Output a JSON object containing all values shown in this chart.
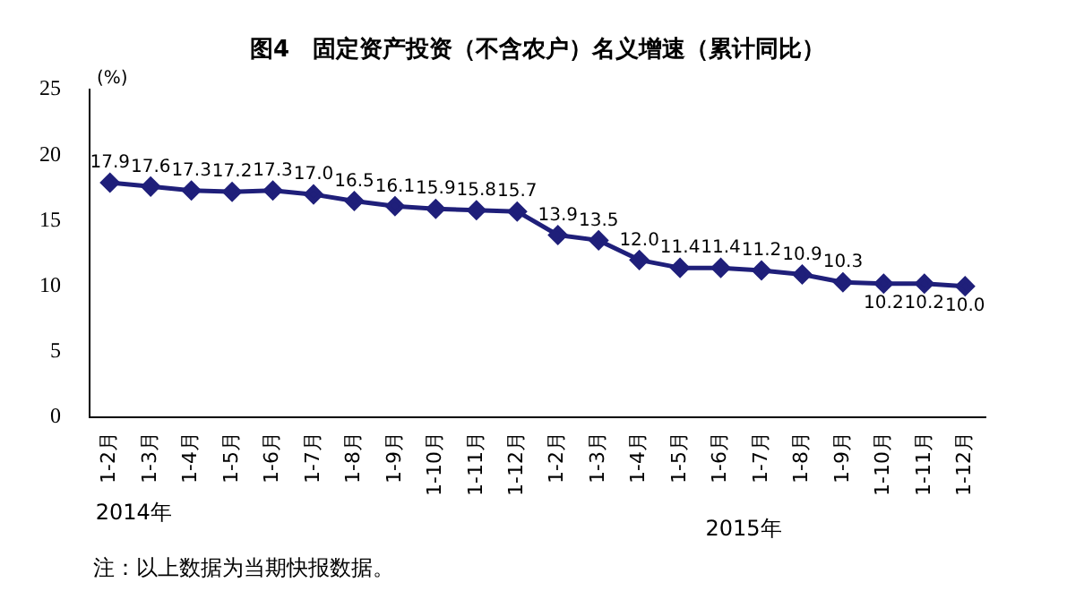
{
  "chart_data": {
    "type": "line",
    "title": "图4　固定资产投资（不含农户）名义增速（累计同比）",
    "ylabel": "(%)",
    "categories": [
      "1-2月",
      "1-3月",
      "1-4月",
      "1-5月",
      "1-6月",
      "1-7月",
      "1-8月",
      "1-9月",
      "1-10月",
      "1-11月",
      "1-12月",
      "1-2月",
      "1-3月",
      "1-4月",
      "1-5月",
      "1-6月",
      "1-7月",
      "1-8月",
      "1-9月",
      "1-10月",
      "1-11月",
      "1-12月"
    ],
    "series": [
      {
        "color": "#1f1f7a",
        "values": [
          17.9,
          17.6,
          17.3,
          17.2,
          17.3,
          17.0,
          16.5,
          16.1,
          15.9,
          15.8,
          15.7,
          13.9,
          13.5,
          12.0,
          11.4,
          11.4,
          11.2,
          10.9,
          10.3,
          10.2,
          10.2,
          10.0
        ],
        "value_labels": [
          "17.9",
          "17.6",
          "17.3",
          "17.2",
          "17.3",
          "17.0",
          "16.5",
          "16.1",
          "15.9",
          "15.8",
          "15.7",
          "13.9",
          "13.5",
          "12.0",
          "11.4",
          "11.4",
          "11.2",
          "10.9",
          "10.3",
          "10.2",
          "10.2",
          "10.0"
        ]
      }
    ],
    "ylim": [
      0,
      25
    ],
    "yticks": [
      0,
      5,
      10,
      15,
      20,
      25
    ],
    "grid": false,
    "legend": false,
    "marker": "diamond",
    "line_style": "solid",
    "annotations": [
      "2014年",
      "2015年",
      "注：以上数据为当期快报数据。"
    ]
  }
}
